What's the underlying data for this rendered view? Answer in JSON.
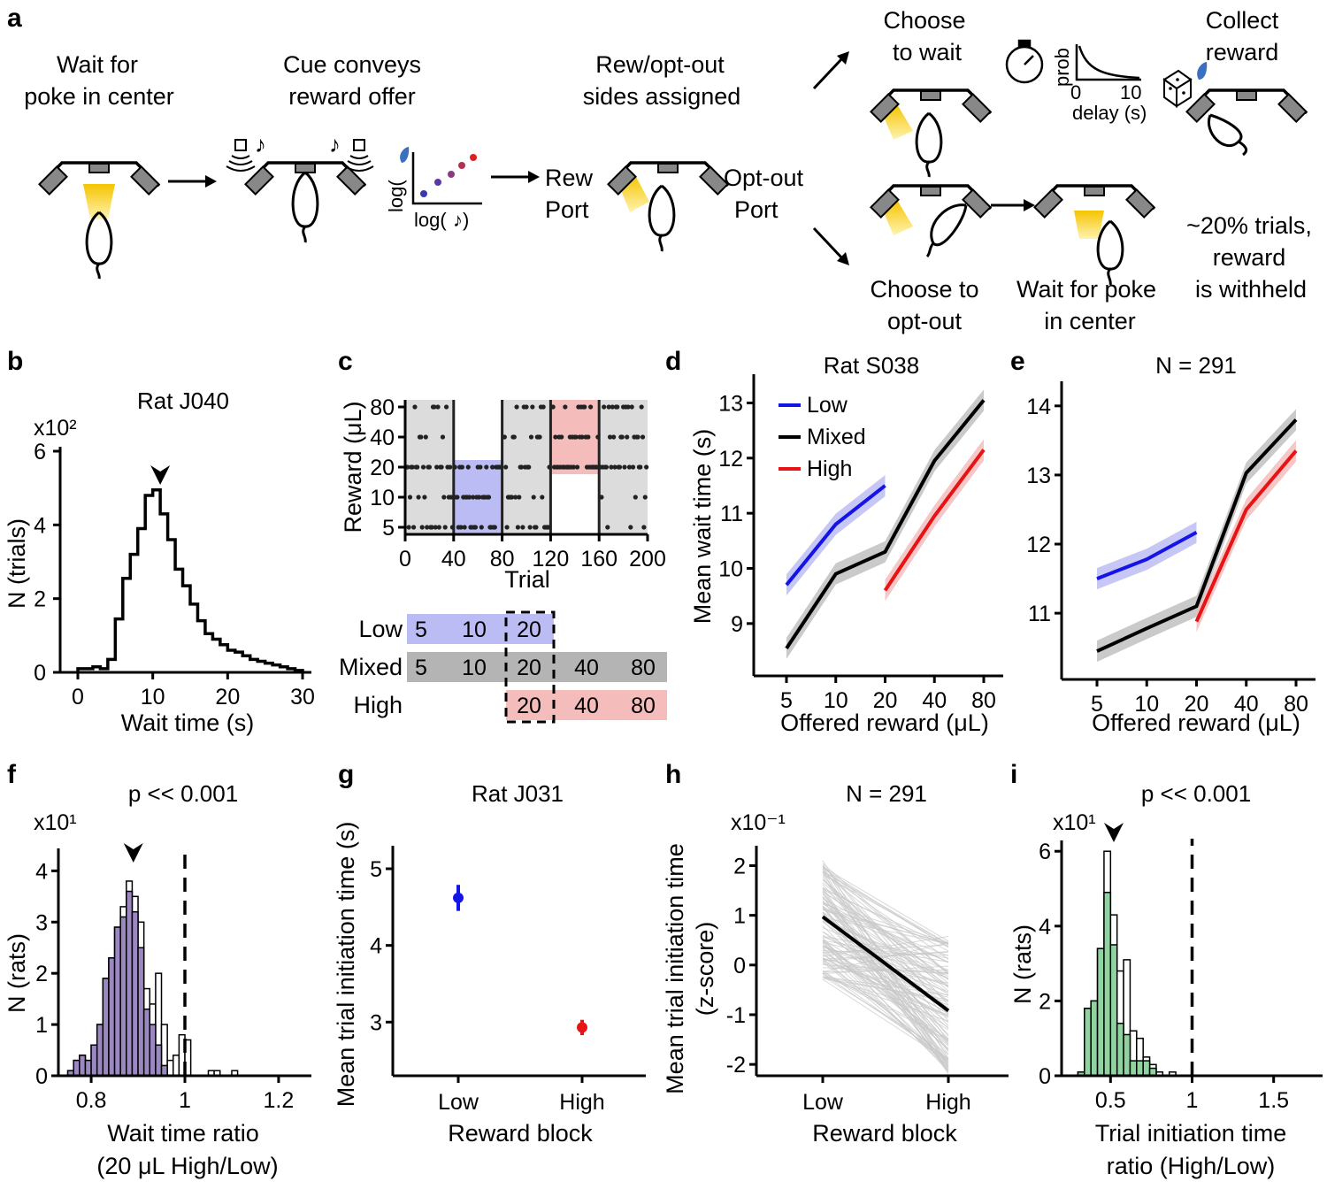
{
  "panels": {
    "a": {
      "label": "a",
      "steps": [
        [
          "Wait for",
          "poke in center"
        ],
        [
          "Cue conveys",
          "reward offer"
        ],
        [
          "Rew/opt-out",
          "sides assigned"
        ]
      ],
      "inset_axes": {
        "y": "log(",
        "x": "log("
      },
      "rew_port": [
        "Rew",
        "Port"
      ],
      "opt_port": [
        "Opt-out",
        "Port"
      ],
      "wait_branch": [
        "Choose",
        "to wait"
      ],
      "collect": [
        "Collect",
        "reward"
      ],
      "delay_inset": {
        "ylabel": "prob",
        "ticks": [
          "0",
          "10"
        ],
        "xlabel": "delay (s)"
      },
      "optout_branch": [
        "Choose to",
        "opt-out"
      ],
      "wait_poke": [
        "Wait for poke",
        "in center"
      ],
      "withheld": [
        "~20% trials,",
        "reward",
        "is withheld"
      ]
    },
    "b": {
      "label": "b",
      "multiplier": "x10²"
    },
    "c": {
      "label": "c",
      "block_labels": [
        "Low",
        "Mixed",
        "High"
      ]
    },
    "d": {
      "label": "d"
    },
    "e": {
      "label": "e"
    },
    "f": {
      "label": "f",
      "multiplier": "x10¹"
    },
    "g": {
      "label": "g"
    },
    "h": {
      "label": "h",
      "multiplier": "x10⁻¹"
    },
    "i": {
      "label": "i",
      "multiplier": "x10¹"
    }
  },
  "chart_data": [
    {
      "id": "b",
      "type": "histogram",
      "title": "Rat J040",
      "xlabel": "Wait time (s)",
      "ylabel": "N (trials)",
      "xlim": [
        0,
        30
      ],
      "ylim": [
        0,
        6
      ],
      "xticks": [
        0,
        10,
        20,
        30
      ],
      "yticks": [
        0,
        2,
        4,
        6
      ],
      "bin_width": 1,
      "bin_start": 0,
      "counts": [
        0.1,
        0.1,
        0.15,
        0.1,
        0.35,
        1.45,
        2.55,
        3.2,
        3.9,
        4.8,
        4.95,
        4.3,
        3.6,
        2.8,
        2.35,
        1.85,
        1.4,
        1.05,
        0.9,
        0.75,
        0.6,
        0.55,
        0.45,
        0.35,
        0.3,
        0.25,
        0.2,
        0.15,
        0.1,
        0.05
      ],
      "arrow_at": 11
    },
    {
      "id": "c",
      "type": "scatter",
      "xlabel": "Trial",
      "ylabel": "Reward (μL)",
      "xlim": [
        0,
        200
      ],
      "xticks": [
        0,
        40,
        80,
        120,
        160,
        200
      ],
      "ycategories": [
        "5",
        "10",
        "20",
        "40",
        "80"
      ],
      "blocks": [
        {
          "start": 0,
          "end": 40,
          "type": "Mixed",
          "color": "#dcdcdc"
        },
        {
          "start": 40,
          "end": 80,
          "type": "Low",
          "color": "#bcbcf5"
        },
        {
          "start": 80,
          "end": 120,
          "type": "Mixed",
          "color": "#dcdcdc"
        },
        {
          "start": 120,
          "end": 160,
          "type": "High",
          "color": "#f5bcbc"
        },
        {
          "start": 160,
          "end": 200,
          "type": "Mixed",
          "color": "#dcdcdc"
        }
      ],
      "block_table": {
        "Low": [
          "5",
          "10",
          "20"
        ],
        "Mixed": [
          "5",
          "10",
          "20",
          "40",
          "80"
        ],
        "High": [
          "20",
          "40",
          "80"
        ]
      }
    },
    {
      "id": "d",
      "type": "line",
      "title": "Rat S038",
      "xlabel": "Offered reward (μL)",
      "ylabel": "Mean wait time (s)",
      "categories": [
        "5",
        "10",
        "20",
        "40",
        "80"
      ],
      "ylim": [
        8.5,
        13.2
      ],
      "yticks": [
        9,
        10,
        11,
        12,
        13
      ],
      "legend": "top-left",
      "series": [
        {
          "name": "Low",
          "color": "#1414e6",
          "x": [
            "5",
            "10",
            "20"
          ],
          "values": [
            9.7,
            10.8,
            11.5
          ]
        },
        {
          "name": "Mixed",
          "color": "#000000",
          "x": [
            "5",
            "10",
            "20",
            "40",
            "80"
          ],
          "values": [
            8.55,
            9.9,
            10.3,
            11.95,
            13.05
          ]
        },
        {
          "name": "High",
          "color": "#e61414",
          "x": [
            "20",
            "40",
            "80"
          ],
          "values": [
            9.6,
            10.95,
            12.15
          ]
        }
      ]
    },
    {
      "id": "e",
      "type": "line",
      "title": "N = 291",
      "xlabel": "Offered reward (μL)",
      "categories": [
        "5",
        "10",
        "20",
        "40",
        "80"
      ],
      "ylim": [
        10.4,
        14.1
      ],
      "yticks": [
        11,
        12,
        13,
        14
      ],
      "series": [
        {
          "color": "#1414e6",
          "x": [
            "5",
            "10",
            "20"
          ],
          "values": [
            11.5,
            11.78,
            12.17
          ]
        },
        {
          "color": "#000000",
          "x": [
            "5",
            "10",
            "20",
            "40",
            "80"
          ],
          "values": [
            10.45,
            10.78,
            11.1,
            13.03,
            13.8
          ]
        },
        {
          "color": "#e61414",
          "x": [
            "20",
            "40",
            "80"
          ],
          "values": [
            10.88,
            12.5,
            13.35
          ]
        }
      ]
    },
    {
      "id": "f",
      "type": "histogram",
      "title": "p << 0.001",
      "xlabel": "Wait time ratio",
      "xlabel2": "(20 μL High/Low)",
      "ylabel": "N (rats)",
      "xlim": [
        0.73,
        1.27
      ],
      "ylim": [
        0,
        4.3
      ],
      "xticks": [
        0.8,
        1,
        1.2
      ],
      "xticklabels": [
        "0.8",
        "1",
        "1.2"
      ],
      "yticks": [
        0,
        1,
        2,
        3,
        4
      ],
      "bin_width": 0.0125,
      "bin_start": 0.75,
      "counts_significant": [
        0.1,
        0.3,
        0.4,
        0.3,
        0.6,
        1.0,
        1.9,
        2.3,
        2.9,
        3.1,
        3.6,
        3.2,
        2.5,
        1.3,
        1.0,
        0.6,
        0.2,
        0,
        0,
        0,
        0,
        0,
        0,
        0,
        0,
        0,
        0,
        0,
        0
      ],
      "counts_total": [
        0.1,
        0.3,
        0.4,
        0.3,
        0.6,
        1.0,
        1.9,
        2.3,
        2.9,
        3.3,
        3.8,
        3.5,
        3.0,
        1.7,
        1.4,
        2.0,
        1.0,
        0.3,
        0.4,
        0.8,
        0.7,
        0,
        0,
        0,
        0.1,
        0.1,
        0,
        0,
        0.1
      ],
      "fill_color": "#9b88c0",
      "dashed_at": 1.0,
      "arrow_at": 0.89
    },
    {
      "id": "g",
      "type": "scatter",
      "title": "Rat J031",
      "xlabel": "Reward block",
      "ylabel": "Mean trial initiation time (s)",
      "categories": [
        "Low",
        "High"
      ],
      "ylim": [
        2.3,
        5.3
      ],
      "yticks": [
        3,
        4,
        5
      ],
      "points": [
        {
          "x": "Low",
          "y": 4.62,
          "err": 0.17,
          "color": "#1414e6"
        },
        {
          "x": "High",
          "y": 2.93,
          "err": 0.1,
          "color": "#e61414"
        }
      ]
    },
    {
      "id": "h",
      "type": "line",
      "title": "N = 291",
      "xlabel": "Reward block",
      "ylabel": "Mean trial initiation time",
      "ylabel2": "(z-score)",
      "categories": [
        "Low",
        "High"
      ],
      "ylim": [
        -2.3,
        2.4
      ],
      "yticks": [
        -2,
        -1,
        0,
        1,
        2
      ],
      "mean": [
        0.97,
        -0.92
      ],
      "individual_lines": 120,
      "individual_low_range": [
        -0.3,
        2.1
      ],
      "individual_high_range": [
        -2.2,
        0.6
      ]
    },
    {
      "id": "i",
      "type": "histogram",
      "title": "p << 0.001",
      "xlabel": "Trial initiation time",
      "xlabel2": "ratio (High/Low)",
      "ylabel": "N (rats)",
      "xlim": [
        0.2,
        1.8
      ],
      "ylim": [
        0,
        6.1
      ],
      "xticks": [
        0.5,
        1,
        1.5
      ],
      "xticklabels": [
        "0.5",
        "1",
        "1.5"
      ],
      "yticks": [
        0,
        2,
        4,
        6
      ],
      "bin_width": 0.04,
      "bin_start": 0.3,
      "counts_significant": [
        0.1,
        1.8,
        2.0,
        3.4,
        4.9,
        3.5,
        1.4,
        1.1,
        0.4,
        0.4,
        0.4,
        0.2,
        0,
        0,
        0
      ],
      "counts_total": [
        0.1,
        1.8,
        2.0,
        3.4,
        6.0,
        4.3,
        2.8,
        3.1,
        1.2,
        1.0,
        0.5,
        0.3,
        0.1,
        0,
        0.1
      ],
      "fill_color": "#8ed3a0",
      "dashed_at": 1.0,
      "arrow_at": 0.52
    }
  ]
}
